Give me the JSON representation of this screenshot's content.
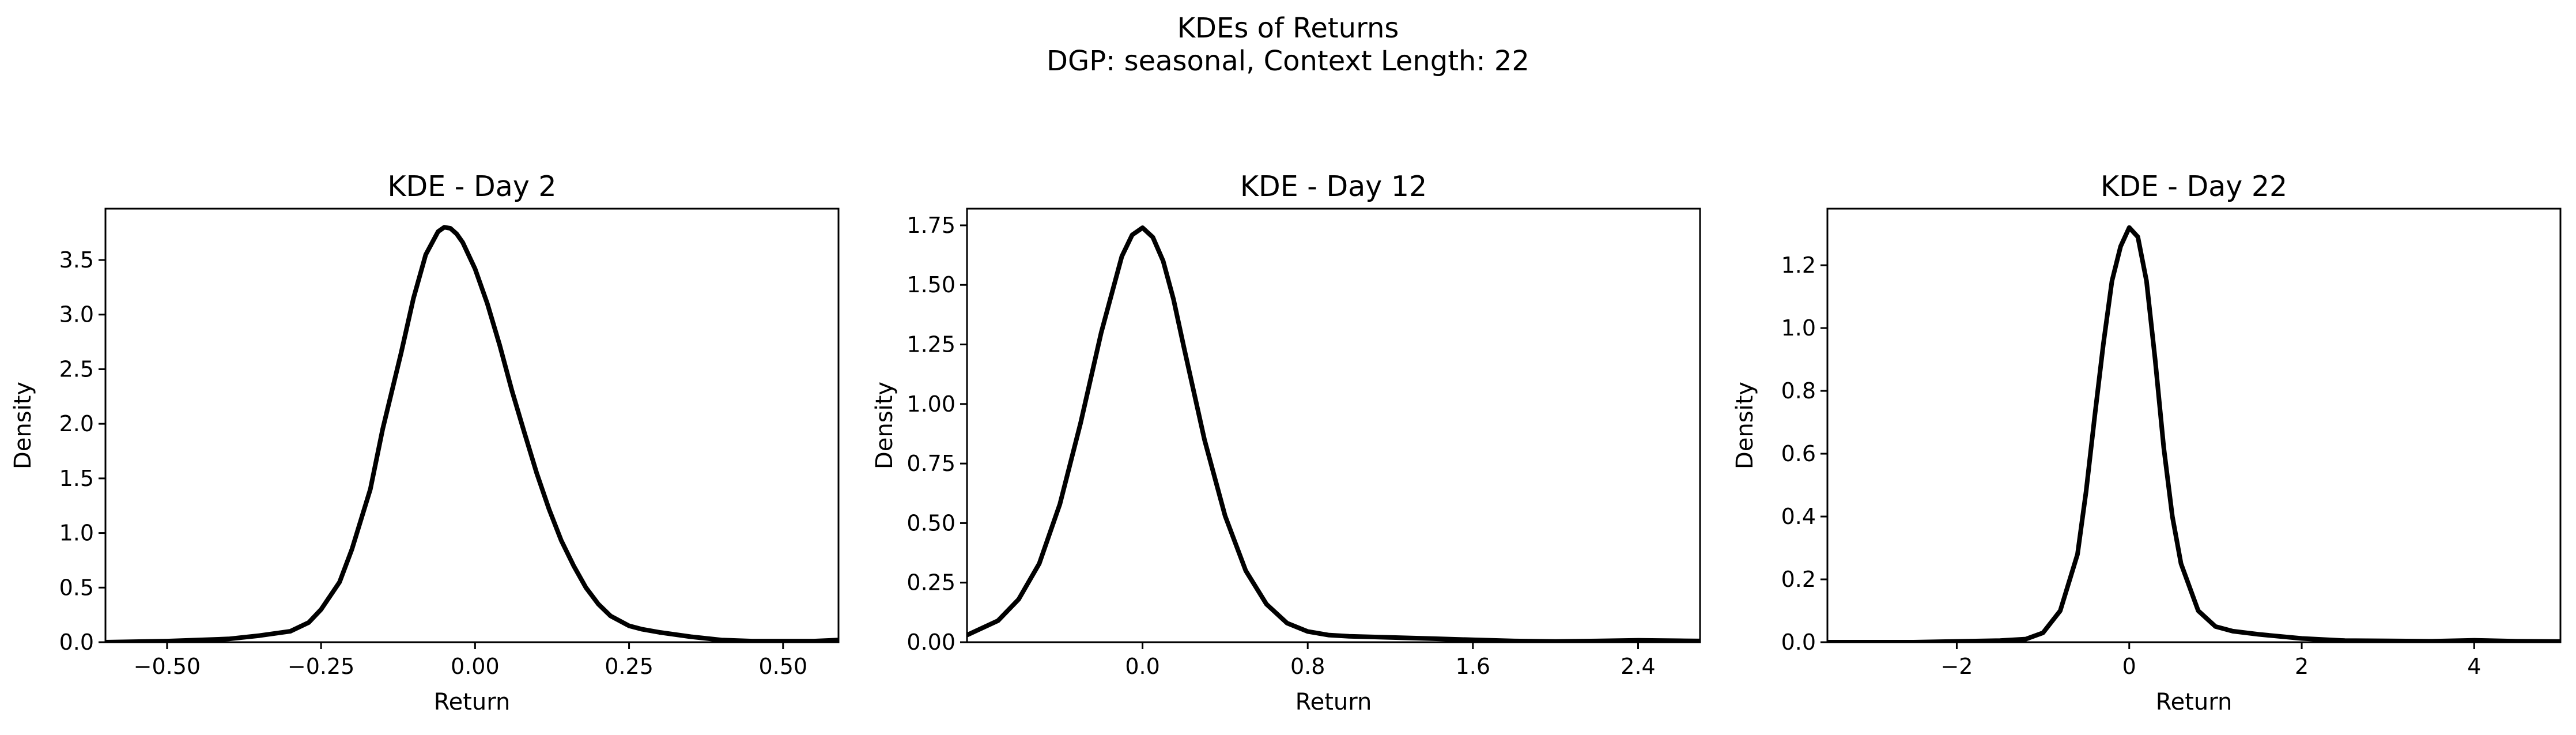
{
  "figure": {
    "title_line1": "KDEs of Returns",
    "title_line2": "DGP: seasonal, Context Length: 22"
  },
  "chart_data": [
    {
      "type": "line",
      "title": "KDE - Day 2",
      "xlabel": "Return",
      "ylabel": "Density",
      "xlim": [
        -0.6,
        0.59
      ],
      "ylim": [
        0,
        3.97
      ],
      "xticks": [
        -0.5,
        -0.25,
        0.0,
        0.25,
        0.5
      ],
      "xtick_labels": [
        "−0.50",
        "−0.25",
        "0.00",
        "0.25",
        "0.50"
      ],
      "yticks": [
        0,
        0.5,
        1.0,
        1.5,
        2.0,
        2.5,
        3.0,
        3.5
      ],
      "ytick_labels": [
        "0.0",
        "0.5",
        "1.0",
        "1.5",
        "2.0",
        "2.5",
        "3.0",
        "3.5"
      ],
      "grid": false,
      "series": [
        {
          "color": "#000000",
          "x": [
            -0.6,
            -0.5,
            -0.4,
            -0.35,
            -0.3,
            -0.27,
            -0.25,
            -0.22,
            -0.2,
            -0.17,
            -0.15,
            -0.12,
            -0.1,
            -0.08,
            -0.06,
            -0.05,
            -0.04,
            -0.03,
            -0.02,
            0.0,
            0.02,
            0.04,
            0.06,
            0.08,
            0.1,
            0.12,
            0.14,
            0.16,
            0.18,
            0.2,
            0.22,
            0.25,
            0.27,
            0.3,
            0.35,
            0.4,
            0.45,
            0.5,
            0.55,
            0.59
          ],
          "y": [
            0.0,
            0.01,
            0.03,
            0.06,
            0.1,
            0.18,
            0.3,
            0.55,
            0.85,
            1.4,
            1.95,
            2.65,
            3.15,
            3.55,
            3.76,
            3.8,
            3.79,
            3.74,
            3.66,
            3.42,
            3.1,
            2.72,
            2.3,
            1.92,
            1.55,
            1.22,
            0.93,
            0.7,
            0.5,
            0.35,
            0.24,
            0.15,
            0.12,
            0.09,
            0.05,
            0.02,
            0.01,
            0.01,
            0.01,
            0.02
          ]
        }
      ]
    },
    {
      "type": "line",
      "title": "KDE - Day 12",
      "xlabel": "Return",
      "ylabel": "Density",
      "xlim": [
        -0.85,
        2.7
      ],
      "ylim": [
        0,
        1.82
      ],
      "xticks": [
        0.0,
        0.8,
        1.6,
        2.4
      ],
      "xtick_labels": [
        "0.0",
        "0.8",
        "1.6",
        "2.4"
      ],
      "yticks": [
        0,
        0.25,
        0.5,
        0.75,
        1.0,
        1.25,
        1.5,
        1.75
      ],
      "ytick_labels": [
        "0.00",
        "0.25",
        "0.50",
        "0.75",
        "1.00",
        "1.25",
        "1.50",
        "1.75"
      ],
      "grid": false,
      "series": [
        {
          "color": "#000000",
          "x": [
            -0.85,
            -0.7,
            -0.6,
            -0.5,
            -0.4,
            -0.3,
            -0.2,
            -0.1,
            -0.05,
            0.0,
            0.05,
            0.1,
            0.15,
            0.2,
            0.3,
            0.4,
            0.5,
            0.6,
            0.7,
            0.8,
            0.9,
            1.0,
            1.2,
            1.4,
            1.6,
            1.8,
            2.0,
            2.2,
            2.4,
            2.6,
            2.7
          ],
          "y": [
            0.03,
            0.09,
            0.18,
            0.33,
            0.58,
            0.92,
            1.3,
            1.62,
            1.71,
            1.74,
            1.7,
            1.6,
            1.44,
            1.24,
            0.85,
            0.53,
            0.3,
            0.16,
            0.08,
            0.045,
            0.03,
            0.025,
            0.02,
            0.015,
            0.01,
            0.005,
            0.003,
            0.005,
            0.008,
            0.006,
            0.005
          ]
        }
      ]
    },
    {
      "type": "line",
      "title": "KDE - Day 22",
      "xlabel": "Return",
      "ylabel": "Density",
      "xlim": [
        -3.5,
        5.0
      ],
      "ylim": [
        0,
        1.38
      ],
      "xticks": [
        -2,
        0,
        2,
        4
      ],
      "xtick_labels": [
        "−2",
        "0",
        "2",
        "4"
      ],
      "yticks": [
        0,
        0.2,
        0.4,
        0.6,
        0.8,
        1.0,
        1.2
      ],
      "ytick_labels": [
        "0.0",
        "0.2",
        "0.4",
        "0.6",
        "0.8",
        "1.0",
        "1.2"
      ],
      "grid": false,
      "series": [
        {
          "color": "#000000",
          "x": [
            -3.5,
            -2.5,
            -1.5,
            -1.2,
            -1.0,
            -0.8,
            -0.6,
            -0.5,
            -0.4,
            -0.3,
            -0.2,
            -0.1,
            0.0,
            0.1,
            0.2,
            0.3,
            0.4,
            0.5,
            0.6,
            0.8,
            1.0,
            1.2,
            1.5,
            2.0,
            2.5,
            3.0,
            3.5,
            4.0,
            4.5,
            5.0
          ],
          "y": [
            0.0,
            0.0,
            0.005,
            0.01,
            0.03,
            0.1,
            0.28,
            0.48,
            0.72,
            0.95,
            1.15,
            1.26,
            1.32,
            1.29,
            1.15,
            0.9,
            0.62,
            0.4,
            0.25,
            0.1,
            0.05,
            0.035,
            0.025,
            0.012,
            0.005,
            0.004,
            0.003,
            0.006,
            0.003,
            0.002
          ]
        }
      ]
    }
  ]
}
